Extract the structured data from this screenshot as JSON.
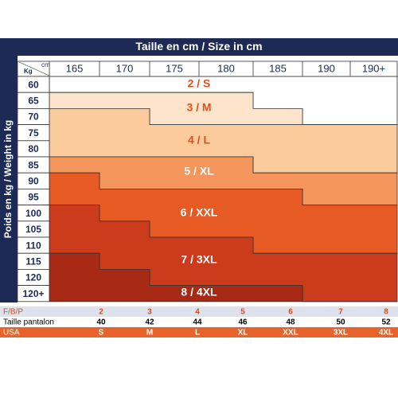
{
  "header": {
    "title": "Taille en cm / Size in cm",
    "side_label": "Poids en kg / Weight in kg",
    "corner_weight": "Kg",
    "corner_height": "cm"
  },
  "columns": [
    "165",
    "170",
    "175",
    "180",
    "185",
    "190",
    "190+"
  ],
  "rows": [
    "60",
    "65",
    "70",
    "75",
    "80",
    "85",
    "90",
    "95",
    "100",
    "105",
    "110",
    "115",
    "120",
    "120+"
  ],
  "bands": [
    "2 / S",
    "3 / M",
    "4 / L",
    "5 / XL",
    "6 / XXL",
    "7 / 3XL",
    "8 / 4XL"
  ],
  "table": {
    "rows": [
      [
        "F/B/P",
        "2",
        "3",
        "4",
        "5",
        "6",
        "7",
        "8"
      ],
      [
        "Taille pantalon",
        "40",
        "42",
        "44",
        "46",
        "48",
        "50",
        "52"
      ],
      [
        "USA",
        "S",
        "M",
        "L",
        "XL",
        "XXL",
        "3XL",
        "4XL"
      ]
    ]
  }
}
